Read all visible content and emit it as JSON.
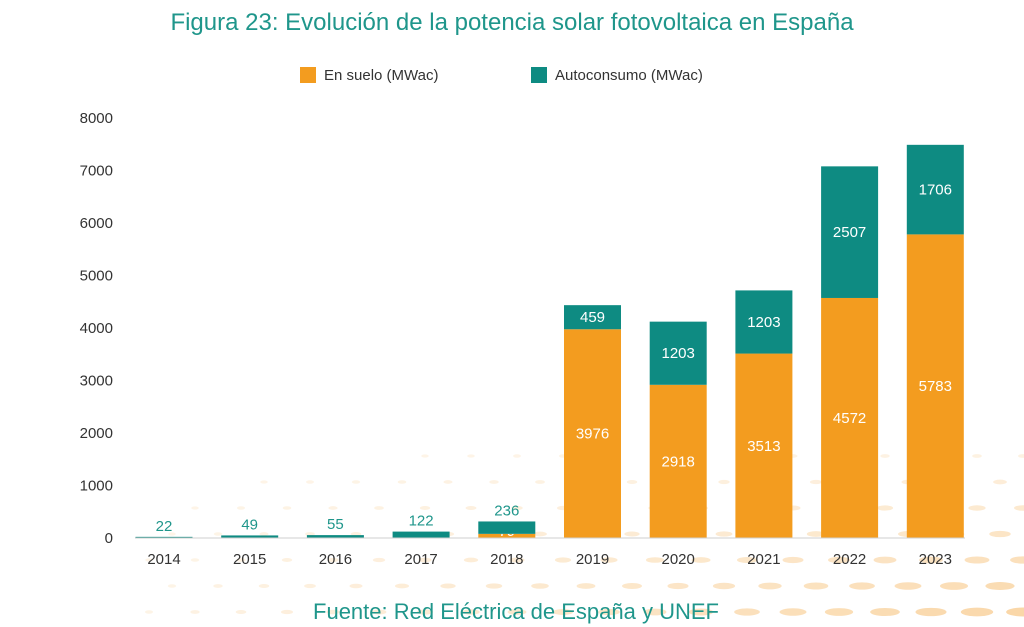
{
  "chart_data": {
    "type": "bar",
    "stacked": true,
    "title": "Figura 23: Evolución de la potencia solar fotovoltaica en España",
    "source": "Fuente: Red Eléctrica de España y UNEF",
    "categories": [
      "2014",
      "2015",
      "2016",
      "2017",
      "2018",
      "2019",
      "2020",
      "2021",
      "2022",
      "2023"
    ],
    "series": [
      {
        "name": "En suelo (MWac)",
        "color": "#f39c1f",
        "values": [
          0,
          0,
          0,
          0,
          79,
          3976,
          2918,
          3513,
          4572,
          5783
        ],
        "labels": [
          "",
          "",
          "",
          "",
          "79",
          "3976",
          "2918",
          "3513",
          "4572",
          "5783"
        ]
      },
      {
        "name": "Autoconsumo (MWac)",
        "color": "#0e8b82",
        "values": [
          22,
          49,
          55,
          122,
          236,
          459,
          1203,
          1203,
          2507,
          1706
        ],
        "labels": [
          "22",
          "49",
          "55",
          "122",
          "236",
          "459",
          "1203",
          "1203",
          "2507",
          "1706"
        ]
      }
    ],
    "yticks": [
      "0",
      "1000",
      "2000",
      "3000",
      "4000",
      "5000",
      "6000",
      "7000",
      "8000"
    ],
    "ylim": [
      0,
      8000
    ],
    "legend_position": "top-center",
    "grid": false
  }
}
